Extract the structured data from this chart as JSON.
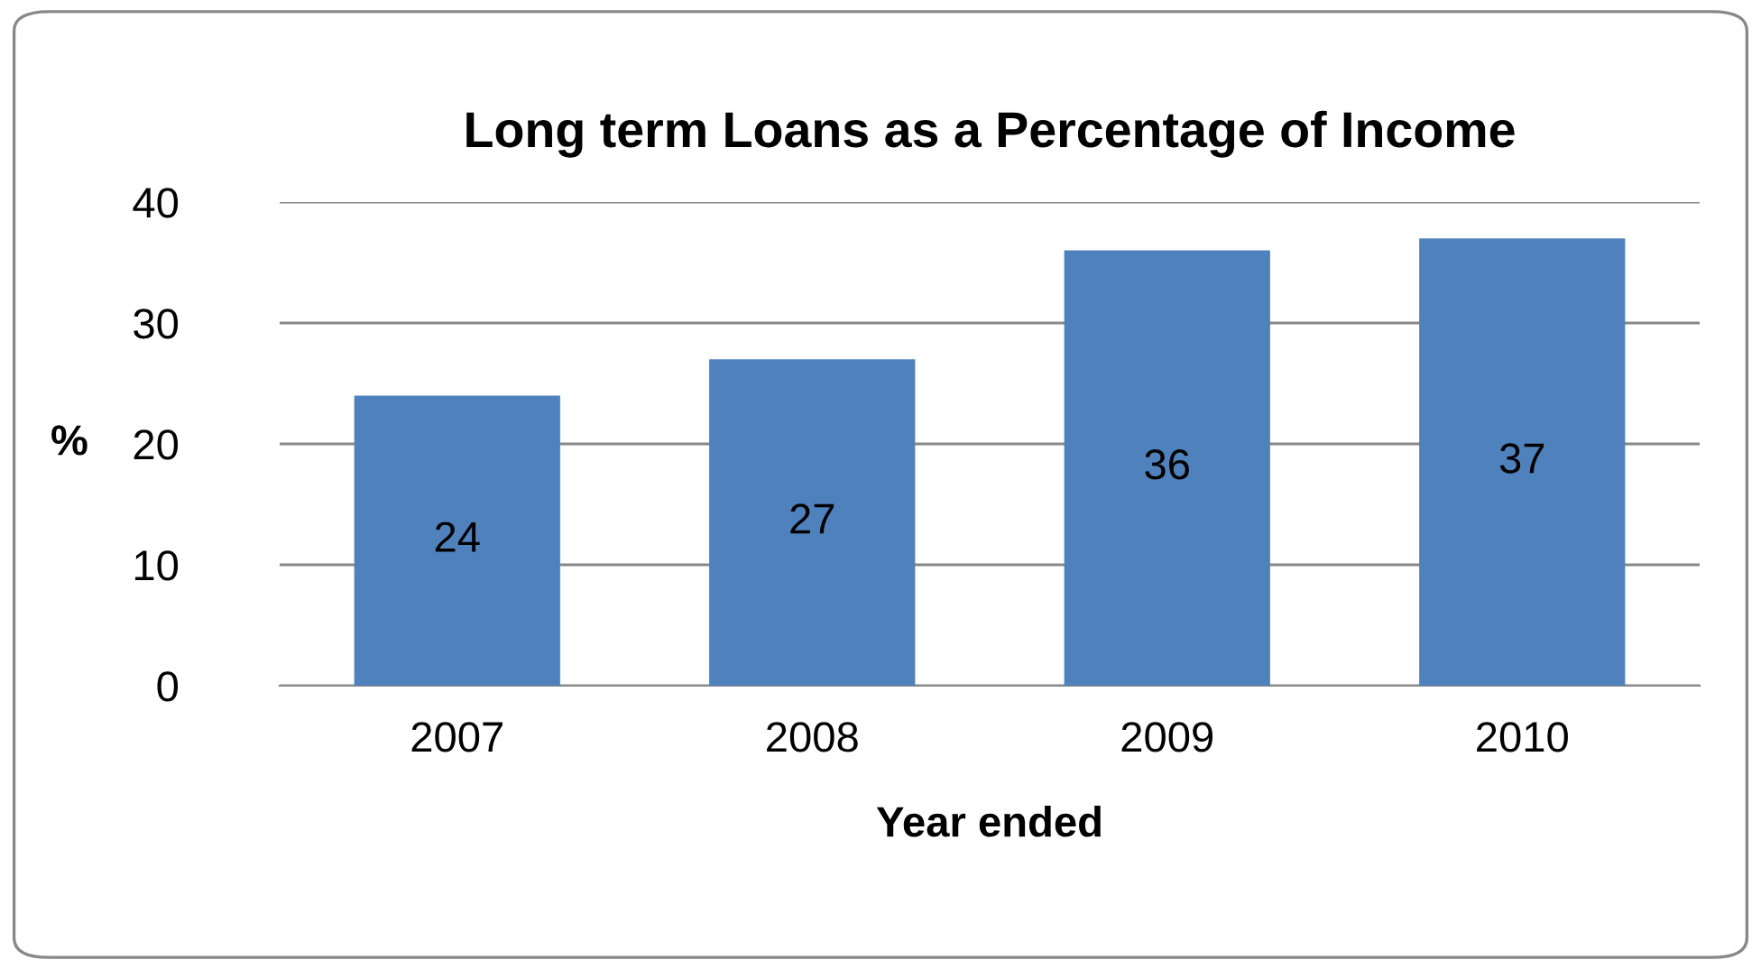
{
  "chart_data": {
    "type": "bar",
    "title": "Long term Loans as a Percentage of Income",
    "xlabel": "Year ended",
    "ylabel": "%",
    "categories": [
      "2007",
      "2008",
      "2009",
      "2010"
    ],
    "values": [
      24,
      27,
      36,
      37
    ],
    "color": "#4f81bd",
    "ylim": [
      0,
      40
    ],
    "yticks": [
      0,
      10,
      20,
      30,
      40
    ],
    "grid": "y",
    "data_labels": true
  }
}
